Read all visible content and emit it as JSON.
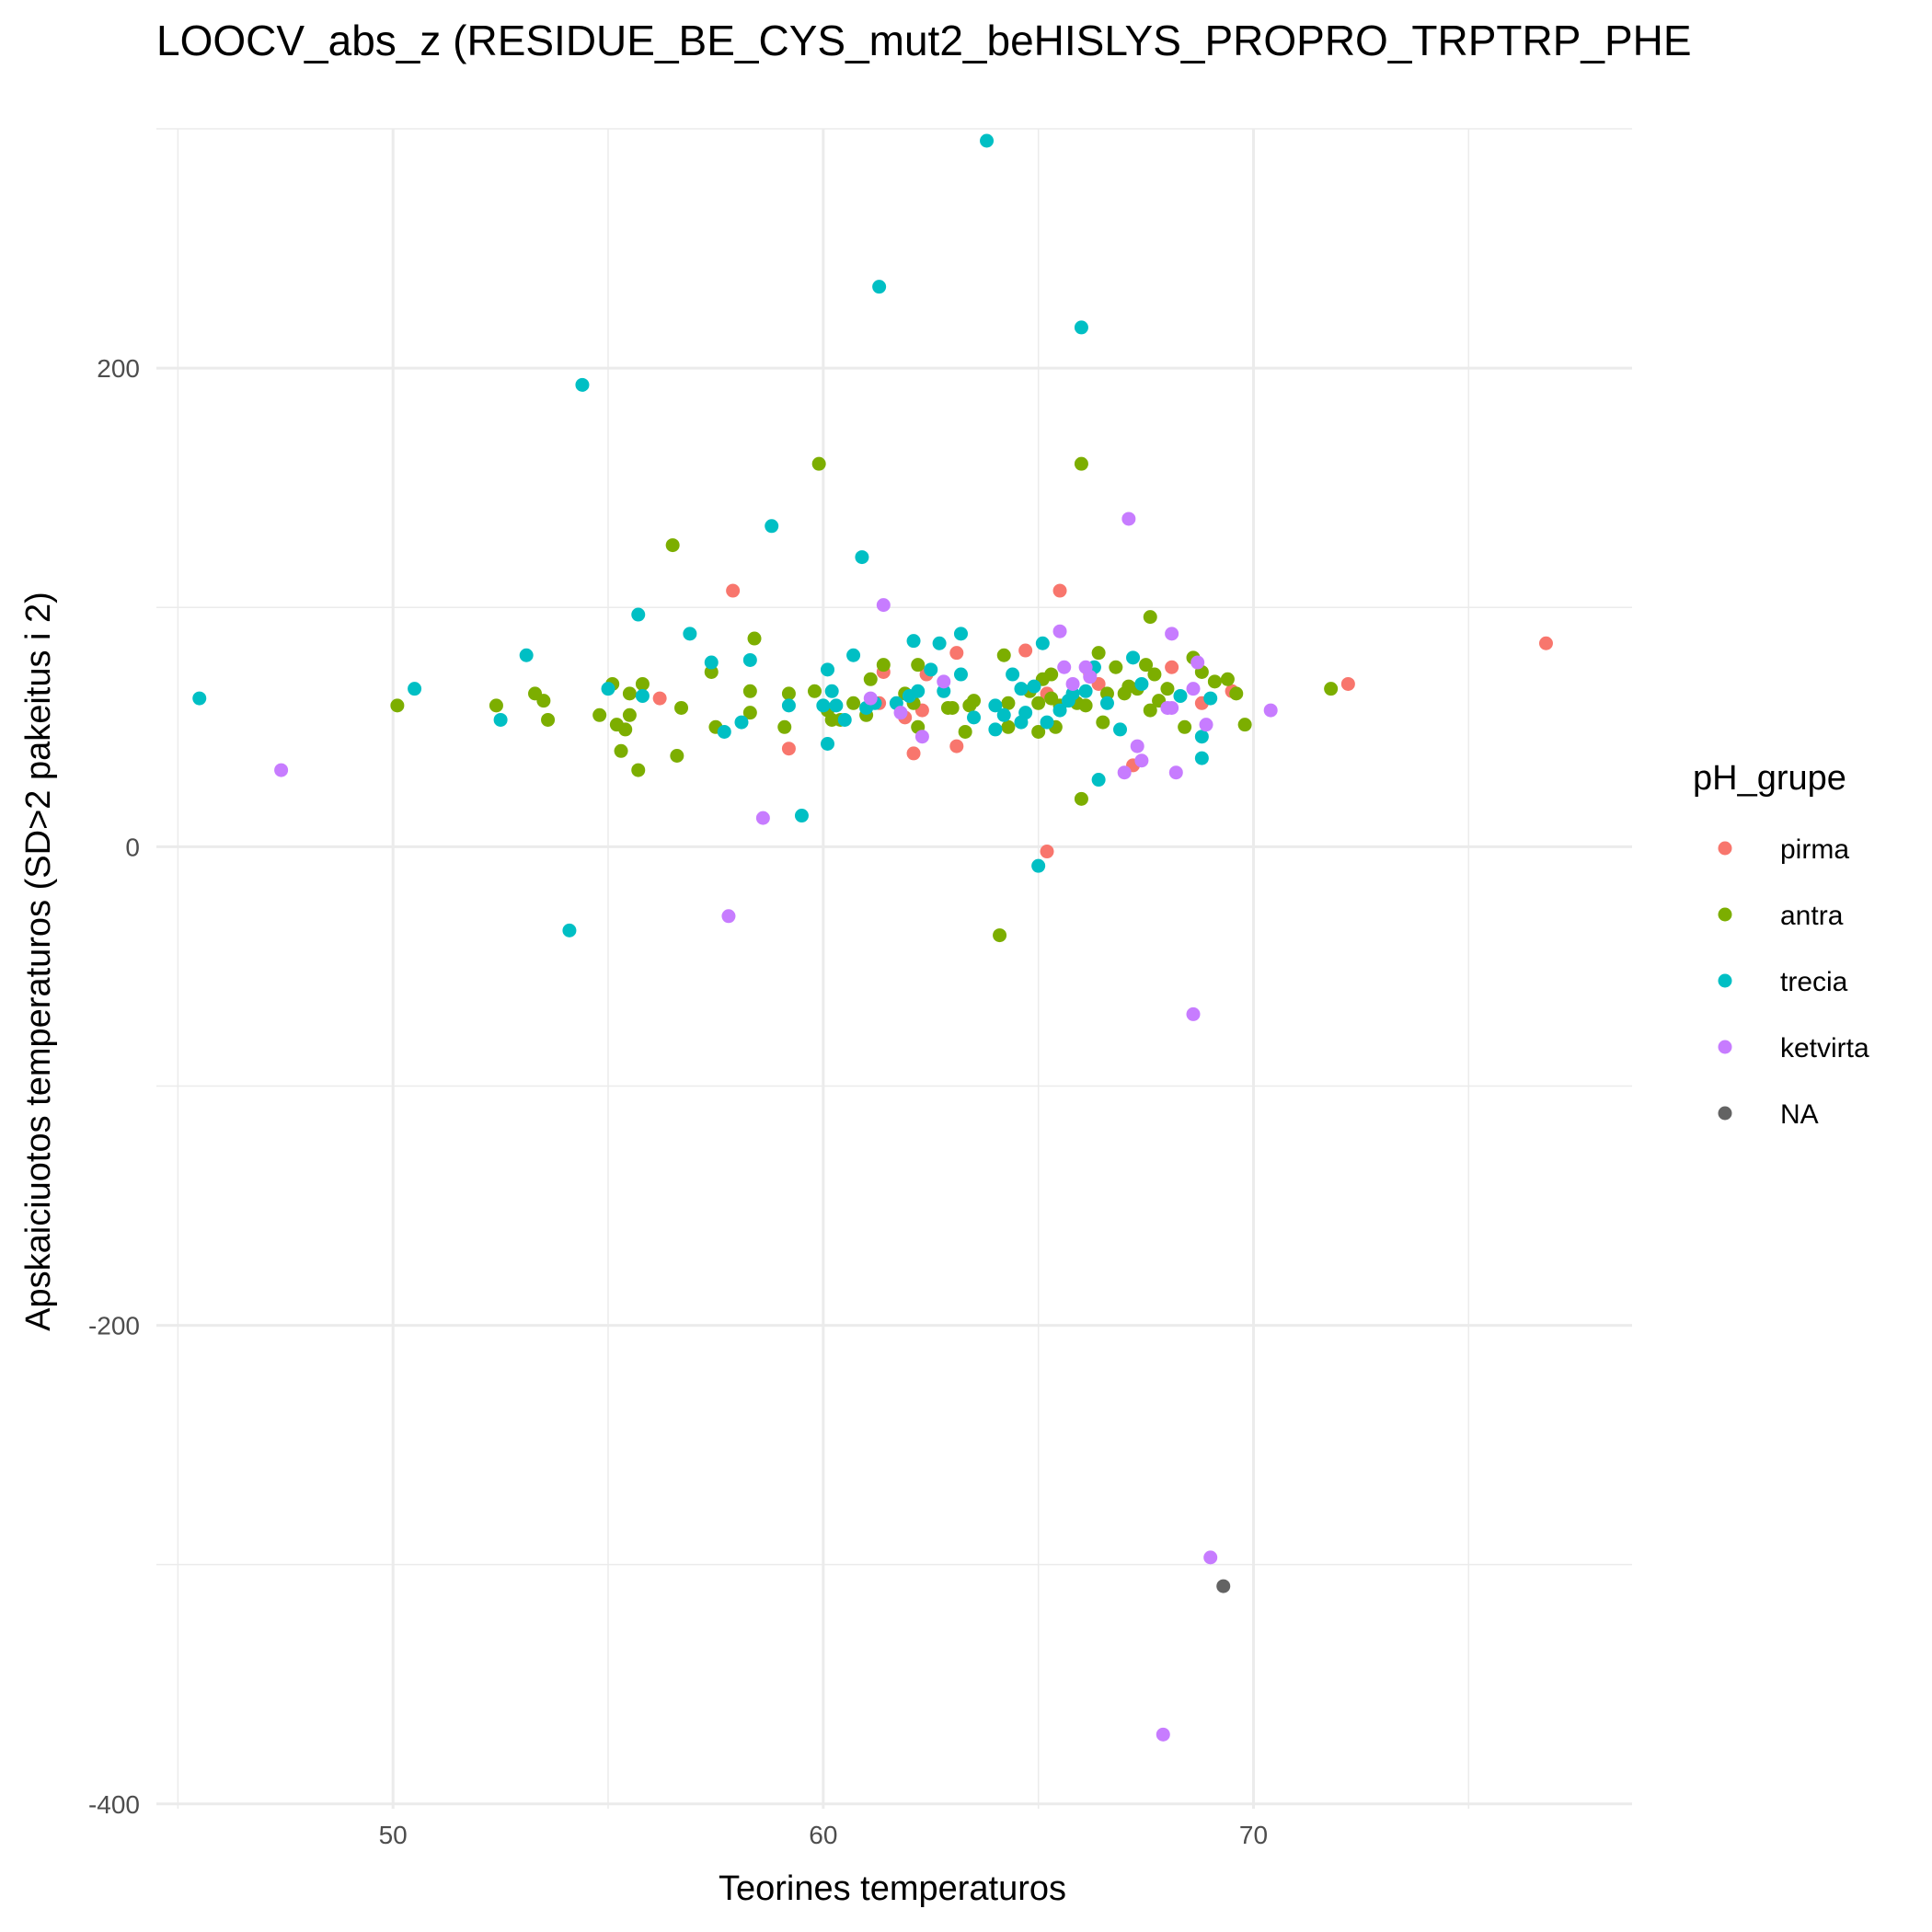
{
  "chart_data": {
    "type": "scatter",
    "title": "LOOCV_abs_z (RESIDUE_BE_CYS_mut2_beHISLYS_PROPRO_TRPTRP_PHE",
    "xlabel": "Teorines temperaturos",
    "ylabel": "Apskaiciuotos temperaturos (SD>2 pakeitus i 2)",
    "xlim": [
      44.5,
      78.8
    ],
    "ylim": [
      -402,
      300
    ],
    "x_ticks": [
      50,
      60,
      70
    ],
    "y_ticks": [
      -400,
      -200,
      0,
      200
    ],
    "grid": true,
    "legend": {
      "title": "pH_grupe",
      "position": "right"
    },
    "series": [
      {
        "name": "pirma",
        "color": "#F8766D",
        "points": [
          [
            57.9,
            107
          ],
          [
            56.2,
            62
          ],
          [
            59.2,
            41
          ],
          [
            61.4,
            73
          ],
          [
            61.3,
            60
          ],
          [
            61.9,
            54
          ],
          [
            62.1,
            39
          ],
          [
            62.3,
            57
          ],
          [
            62.4,
            72
          ],
          [
            63.1,
            81
          ],
          [
            63.1,
            42
          ],
          [
            64.7,
            82
          ],
          [
            65.2,
            64
          ],
          [
            65.2,
            -2
          ],
          [
            65.5,
            107
          ],
          [
            66.2,
            72
          ],
          [
            66.4,
            68
          ],
          [
            67.2,
            34
          ],
          [
            68.1,
            75
          ],
          [
            68.8,
            60
          ],
          [
            69.5,
            65
          ],
          [
            72.2,
            68
          ],
          [
            76.8,
            85
          ]
        ]
      },
      {
        "name": "antra",
        "color": "#7CAE00",
        "points": [
          [
            50.1,
            59
          ],
          [
            52.4,
            59
          ],
          [
            53.3,
            64
          ],
          [
            53.5,
            61
          ],
          [
            53.6,
            53
          ],
          [
            54.8,
            55
          ],
          [
            55.1,
            68
          ],
          [
            55.2,
            51
          ],
          [
            55.3,
            40
          ],
          [
            55.4,
            49
          ],
          [
            55.5,
            55
          ],
          [
            55.5,
            64
          ],
          [
            55.7,
            32
          ],
          [
            55.8,
            68
          ],
          [
            56.5,
            126
          ],
          [
            56.6,
            38
          ],
          [
            56.7,
            58
          ],
          [
            57.4,
            73
          ],
          [
            57.5,
            50
          ],
          [
            58.3,
            56
          ],
          [
            58.3,
            65
          ],
          [
            58.4,
            87
          ],
          [
            59.1,
            50
          ],
          [
            59.2,
            64
          ],
          [
            59.8,
            65
          ],
          [
            59.9,
            160
          ],
          [
            60.1,
            57
          ],
          [
            60.2,
            53
          ],
          [
            60.4,
            53
          ],
          [
            60.7,
            60
          ],
          [
            61.0,
            55
          ],
          [
            61.1,
            70
          ],
          [
            61.4,
            76
          ],
          [
            61.9,
            64
          ],
          [
            62.1,
            60
          ],
          [
            62.2,
            50
          ],
          [
            62.2,
            76
          ],
          [
            62.9,
            58
          ],
          [
            63.0,
            58
          ],
          [
            63.3,
            48
          ],
          [
            63.4,
            59
          ],
          [
            63.5,
            61
          ],
          [
            64.1,
            -37
          ],
          [
            64.2,
            80
          ],
          [
            64.3,
            50
          ],
          [
            64.3,
            60
          ],
          [
            64.8,
            65
          ],
          [
            65.0,
            48
          ],
          [
            65.0,
            60
          ],
          [
            65.1,
            70
          ],
          [
            65.3,
            72
          ],
          [
            65.3,
            62
          ],
          [
            65.5,
            59
          ],
          [
            65.4,
            50
          ],
          [
            65.9,
            60
          ],
          [
            66.0,
            160
          ],
          [
            66.0,
            20
          ],
          [
            66.1,
            59
          ],
          [
            66.4,
            81
          ],
          [
            66.5,
            52
          ],
          [
            66.6,
            64
          ],
          [
            66.8,
            75
          ],
          [
            67.0,
            64
          ],
          [
            67.1,
            67
          ],
          [
            67.3,
            66
          ],
          [
            67.5,
            76
          ],
          [
            67.6,
            96
          ],
          [
            67.6,
            57
          ],
          [
            67.7,
            72
          ],
          [
            67.8,
            61
          ],
          [
            68.0,
            66
          ],
          [
            68.4,
            50
          ],
          [
            68.6,
            79
          ],
          [
            68.8,
            73
          ],
          [
            69.1,
            69
          ],
          [
            69.4,
            70
          ],
          [
            69.6,
            64
          ],
          [
            69.8,
            51
          ],
          [
            71.8,
            66
          ]
        ]
      },
      {
        "name": "trecia",
        "color": "#00BFC4",
        "points": [
          [
            45.5,
            62
          ],
          [
            50.5,
            66
          ],
          [
            52.5,
            53
          ],
          [
            53.1,
            80
          ],
          [
            54.1,
            -35
          ],
          [
            54.4,
            193
          ],
          [
            55.0,
            66
          ],
          [
            55.7,
            97
          ],
          [
            55.8,
            63
          ],
          [
            56.9,
            89
          ],
          [
            57.4,
            77
          ],
          [
            57.7,
            48
          ],
          [
            58.1,
            52
          ],
          [
            58.3,
            78
          ],
          [
            58.8,
            134
          ],
          [
            59.2,
            59
          ],
          [
            59.5,
            13
          ],
          [
            60.1,
            74
          ],
          [
            60.2,
            65
          ],
          [
            60.3,
            59
          ],
          [
            60.5,
            53
          ],
          [
            60.7,
            80
          ],
          [
            60.9,
            121
          ],
          [
            61.2,
            60
          ],
          [
            61.3,
            234
          ],
          [
            61.7,
            60
          ],
          [
            62.0,
            63
          ],
          [
            62.1,
            86
          ],
          [
            62.2,
            65
          ],
          [
            62.5,
            74
          ],
          [
            62.7,
            85
          ],
          [
            62.8,
            65
          ],
          [
            63.2,
            89
          ],
          [
            63.2,
            72
          ],
          [
            63.5,
            54
          ],
          [
            63.8,
            295
          ],
          [
            64.0,
            59
          ],
          [
            64.0,
            49
          ],
          [
            64.2,
            55
          ],
          [
            64.4,
            72
          ],
          [
            64.6,
            66
          ],
          [
            64.7,
            56
          ],
          [
            64.9,
            67
          ],
          [
            65.0,
            -8
          ],
          [
            65.1,
            85
          ],
          [
            65.2,
            52
          ],
          [
            65.5,
            57
          ],
          [
            65.7,
            61
          ],
          [
            65.8,
            64
          ],
          [
            66.0,
            217
          ],
          [
            66.1,
            65
          ],
          [
            66.3,
            75
          ],
          [
            66.4,
            28
          ],
          [
            66.6,
            60
          ],
          [
            66.9,
            49
          ],
          [
            67.2,
            79
          ],
          [
            67.4,
            68
          ],
          [
            68.3,
            63
          ],
          [
            68.8,
            46
          ],
          [
            68.8,
            37
          ],
          [
            69.0,
            62
          ],
          [
            60.0,
            59
          ],
          [
            60.1,
            43
          ],
          [
            61.0,
            58
          ],
          [
            64.6,
            52
          ]
        ]
      },
      {
        "name": "ketvirta",
        "color": "#C77CFF",
        "points": [
          [
            47.4,
            32
          ],
          [
            57.8,
            -29
          ],
          [
            58.6,
            12
          ],
          [
            61.1,
            62
          ],
          [
            61.4,
            101
          ],
          [
            61.8,
            56
          ],
          [
            62.3,
            46
          ],
          [
            62.8,
            69
          ],
          [
            65.5,
            90
          ],
          [
            65.6,
            75
          ],
          [
            65.8,
            68
          ],
          [
            66.1,
            75
          ],
          [
            66.2,
            71
          ],
          [
            67.0,
            31
          ],
          [
            67.1,
            137
          ],
          [
            67.3,
            42
          ],
          [
            67.4,
            36
          ],
          [
            68.0,
            58
          ],
          [
            68.1,
            89
          ],
          [
            68.1,
            58
          ],
          [
            68.2,
            31
          ],
          [
            68.6,
            66
          ],
          [
            68.6,
            -70
          ],
          [
            68.7,
            77
          ],
          [
            68.9,
            51
          ],
          [
            69.0,
            -297
          ],
          [
            70.4,
            57
          ],
          [
            67.9,
            -371
          ]
        ]
      },
      {
        "name": "NA",
        "color": "#636363",
        "points": [
          [
            69.3,
            -309
          ]
        ]
      }
    ]
  }
}
